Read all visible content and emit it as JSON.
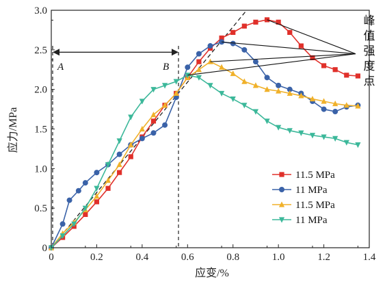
{
  "chart_data": {
    "type": "line",
    "xlabel": "应变/%",
    "ylabel": "应力/MPa",
    "xlim": [
      0,
      1.4
    ],
    "ylim": [
      0,
      3.0
    ],
    "x_ticks": [
      "0",
      "0.2",
      "0.4",
      "0.6",
      "0.8",
      "1.0",
      "1.2",
      "1.4"
    ],
    "y_ticks": [
      "0",
      "0.5",
      "1.0",
      "1.5",
      "2.0",
      "2.5",
      "3.0"
    ],
    "legend_position": "bottom-right",
    "annotation": {
      "label_A": "A",
      "label_B": "B",
      "peak_label": "峰值强度点",
      "A_strain": 0.0,
      "B_strain": 0.56
    },
    "series": [
      {
        "name": "11.5 MPa",
        "color": "#e0302a",
        "marker": "square",
        "x": [
          0.0,
          0.05,
          0.1,
          0.15,
          0.2,
          0.25,
          0.3,
          0.35,
          0.4,
          0.45,
          0.5,
          0.55,
          0.6,
          0.65,
          0.7,
          0.75,
          0.8,
          0.85,
          0.9,
          0.95,
          1.0,
          1.05,
          1.1,
          1.15,
          1.2,
          1.25,
          1.3,
          1.35
        ],
        "y": [
          0.0,
          0.13,
          0.27,
          0.42,
          0.58,
          0.75,
          0.95,
          1.15,
          1.4,
          1.6,
          1.8,
          1.95,
          2.15,
          2.35,
          2.52,
          2.65,
          2.72,
          2.8,
          2.85,
          2.88,
          2.85,
          2.72,
          2.55,
          2.4,
          2.3,
          2.25,
          2.18,
          2.17
        ]
      },
      {
        "name": "11 MPa",
        "color": "#3a62a8",
        "marker": "circle",
        "x": [
          0.0,
          0.05,
          0.08,
          0.12,
          0.15,
          0.2,
          0.25,
          0.3,
          0.35,
          0.4,
          0.45,
          0.5,
          0.55,
          0.6,
          0.65,
          0.7,
          0.75,
          0.8,
          0.85,
          0.9,
          0.95,
          1.0,
          1.05,
          1.1,
          1.15,
          1.2,
          1.25,
          1.3,
          1.35
        ],
        "y": [
          0.0,
          0.3,
          0.6,
          0.72,
          0.82,
          0.95,
          1.05,
          1.18,
          1.3,
          1.38,
          1.45,
          1.55,
          1.9,
          2.28,
          2.45,
          2.55,
          2.6,
          2.58,
          2.5,
          2.35,
          2.15,
          2.05,
          2.0,
          1.95,
          1.85,
          1.75,
          1.72,
          1.78,
          1.8
        ]
      },
      {
        "name": "11.5 MPa",
        "color": "#f0b12a",
        "marker": "triangle-up",
        "x": [
          0.0,
          0.05,
          0.1,
          0.15,
          0.2,
          0.25,
          0.3,
          0.35,
          0.4,
          0.45,
          0.5,
          0.55,
          0.6,
          0.65,
          0.7,
          0.75,
          0.8,
          0.85,
          0.9,
          0.95,
          1.0,
          1.05,
          1.1,
          1.15,
          1.2,
          1.25,
          1.3,
          1.35
        ],
        "y": [
          0.0,
          0.18,
          0.32,
          0.48,
          0.65,
          0.85,
          1.05,
          1.3,
          1.5,
          1.68,
          1.8,
          1.95,
          2.15,
          2.25,
          2.35,
          2.28,
          2.2,
          2.1,
          2.05,
          2.0,
          1.98,
          1.95,
          1.92,
          1.88,
          1.85,
          1.82,
          1.8,
          1.79
        ]
      },
      {
        "name": "11 MPa",
        "color": "#3cb89a",
        "marker": "triangle-down",
        "x": [
          0.0,
          0.05,
          0.1,
          0.15,
          0.2,
          0.25,
          0.3,
          0.35,
          0.4,
          0.45,
          0.5,
          0.55,
          0.6,
          0.65,
          0.7,
          0.75,
          0.8,
          0.85,
          0.9,
          0.95,
          1.0,
          1.05,
          1.1,
          1.15,
          1.2,
          1.25,
          1.3,
          1.35
        ],
        "y": [
          0.0,
          0.15,
          0.3,
          0.5,
          0.75,
          1.05,
          1.35,
          1.65,
          1.85,
          2.0,
          2.05,
          2.1,
          2.18,
          2.15,
          2.05,
          1.95,
          1.88,
          1.8,
          1.72,
          1.6,
          1.52,
          1.48,
          1.45,
          1.42,
          1.4,
          1.38,
          1.33,
          1.3
        ]
      }
    ]
  }
}
